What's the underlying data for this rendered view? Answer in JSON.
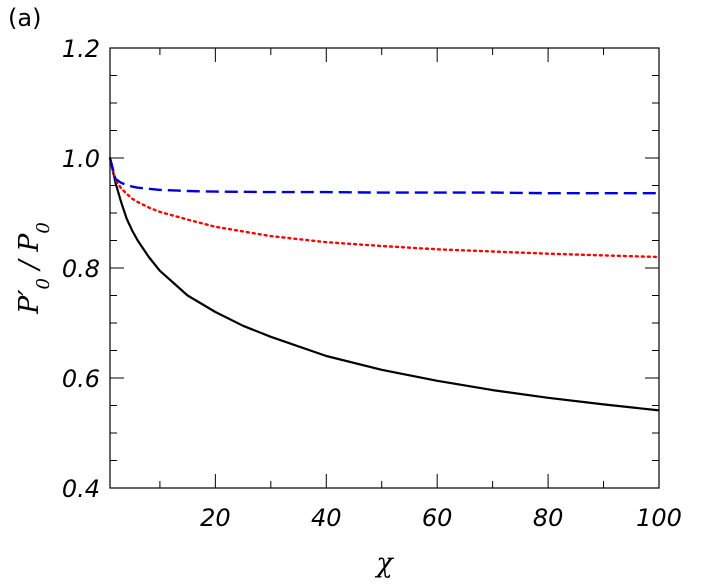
{
  "panel_label": "(a)",
  "chart_data": {
    "type": "line",
    "title": "",
    "xlabel": "χ",
    "ylabel": "P′0 / P0",
    "xlim": [
      1,
      100
    ],
    "ylim": [
      0.4,
      1.2
    ],
    "xticks": [
      20,
      40,
      60,
      80,
      100
    ],
    "xtick_labels": [
      "20",
      "40",
      "60",
      "80",
      "100"
    ],
    "yticks": [
      0.4,
      0.6,
      0.8,
      1.0,
      1.2
    ],
    "ytick_labels": [
      "0.4",
      "0.6",
      "0.8",
      "1.0",
      "1.2"
    ],
    "grid": false,
    "legend": "none",
    "series": [
      {
        "color": "#000000",
        "style": "solid",
        "x": [
          1,
          2,
          3,
          4,
          5,
          6,
          8,
          10,
          15,
          20,
          25,
          30,
          40,
          50,
          60,
          70,
          80,
          90,
          100
        ],
        "y": [
          1.0,
          0.955,
          0.92,
          0.89,
          0.868,
          0.85,
          0.82,
          0.795,
          0.75,
          0.72,
          0.695,
          0.675,
          0.64,
          0.615,
          0.595,
          0.578,
          0.564,
          0.552,
          0.541
        ]
      },
      {
        "color": "#ff0000",
        "style": "dotted",
        "x": [
          1,
          2,
          3,
          4,
          5,
          6,
          8,
          10,
          15,
          20,
          30,
          40,
          50,
          60,
          70,
          80,
          90,
          100
        ],
        "y": [
          1.0,
          0.96,
          0.945,
          0.935,
          0.926,
          0.92,
          0.91,
          0.902,
          0.888,
          0.875,
          0.858,
          0.847,
          0.84,
          0.834,
          0.83,
          0.826,
          0.823,
          0.82
        ]
      },
      {
        "color": "#0000dd",
        "style": "dashed",
        "x": [
          1,
          2,
          3,
          4,
          5,
          6,
          8,
          10,
          15,
          20,
          30,
          40,
          50,
          60,
          70,
          80,
          90,
          100
        ],
        "y": [
          1.0,
          0.962,
          0.955,
          0.951,
          0.948,
          0.946,
          0.944,
          0.942,
          0.94,
          0.939,
          0.938,
          0.938,
          0.937,
          0.937,
          0.937,
          0.936,
          0.936,
          0.936
        ]
      }
    ]
  }
}
